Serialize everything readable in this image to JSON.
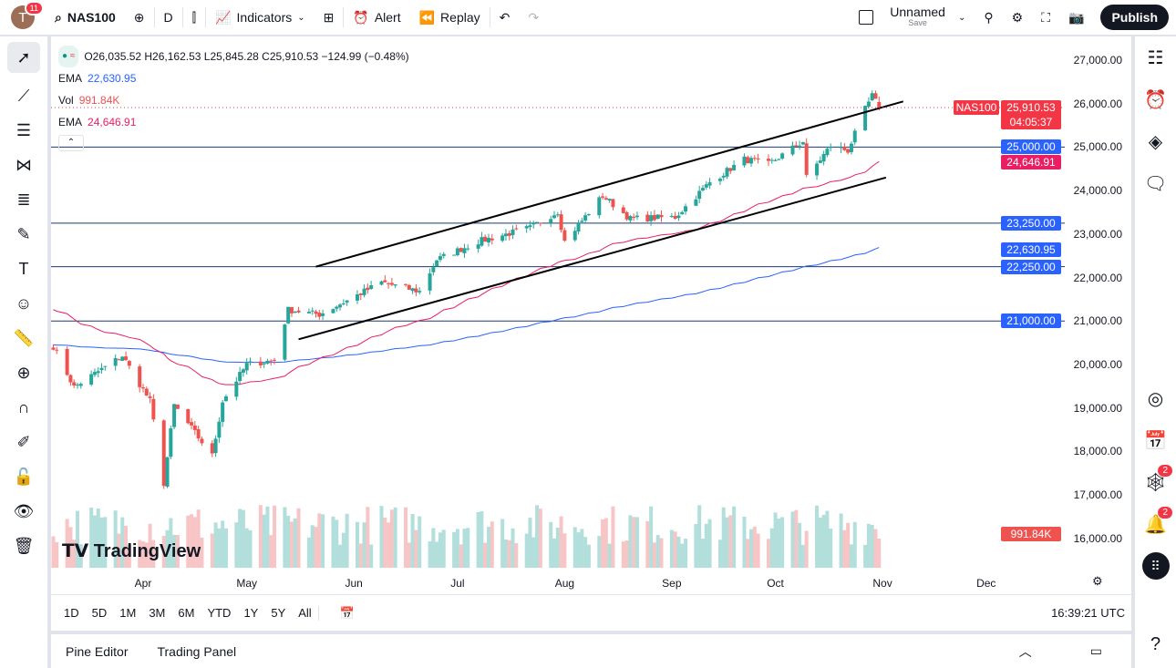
{
  "toolbar": {
    "avatar_letter": "T",
    "notifications": "11",
    "symbol": "NAS100",
    "interval": "D",
    "indicators": "Indicators",
    "alert": "Alert",
    "replay": "Replay",
    "layout_name": "Unnamed",
    "layout_save": "Save",
    "publish": "Publish"
  },
  "legend": {
    "ohlc": "O26,035.52 H26,162.53 L25,845.28 C25,910.53 −124.99 (−0.48%)",
    "ema1_label": "EMA",
    "ema1_value": "22,630.95",
    "vol_label": "Vol",
    "vol_value": "991.84K",
    "ema2_label": "EMA",
    "ema2_value": "24,646.91"
  },
  "price_axis": {
    "ticks": [
      "27,000.00",
      "26,000.00",
      "25,000.00",
      "24,000.00",
      "23,000.00",
      "22,000.00",
      "21,000.00",
      "20,000.00",
      "19,000.00",
      "18,000.00",
      "17,000.00",
      "16,000.00"
    ],
    "symbol_tag": "NAS100",
    "last_price": "25,910.53",
    "countdown": "04:05:37",
    "ema2_tag": "24,646.91",
    "ema1_tag": "22,630.95",
    "vol_tag": "991.84K",
    "levels": [
      "25,000.00",
      "23,250.00",
      "22,250.00",
      "21,000.00"
    ]
  },
  "time_axis": [
    "Apr",
    "May",
    "Jun",
    "Jul",
    "Aug",
    "Sep",
    "Oct",
    "Nov",
    "Dec"
  ],
  "range_bar": {
    "buttons": [
      "1D",
      "5D",
      "1M",
      "3M",
      "6M",
      "YTD",
      "1Y",
      "5Y",
      "All"
    ],
    "clock": "16:39:21 UTC"
  },
  "bottom_panel": {
    "pine": "Pine Editor",
    "trading": "Trading Panel"
  },
  "branding": "TradingView",
  "right_sidebar": {
    "badge1": "2",
    "badge2": "2"
  },
  "colors": {
    "up": "#26a69a",
    "down": "#ef5350",
    "ema_fast": "#e91e63",
    "ema_slow": "#2962ff",
    "level": "#2962ff",
    "accent": "#f23645"
  },
  "chart_data": {
    "type": "candlestick",
    "symbol": "NAS100",
    "ylim": [
      16000,
      27000
    ],
    "close_path": [
      [
        "2025-03-06",
        20420
      ],
      [
        "2025-03-12",
        19480
      ],
      [
        "2025-03-26",
        20200
      ],
      [
        "2025-04-03",
        19160
      ],
      [
        "2025-04-07",
        17270
      ],
      [
        "2025-04-10",
        19060
      ],
      [
        "2025-04-21",
        17900
      ],
      [
        "2025-04-24",
        19160
      ],
      [
        "2025-05-01",
        20000
      ],
      [
        "2025-05-09",
        20100
      ],
      [
        "2025-05-13",
        21260
      ],
      [
        "2025-05-22",
        21150
      ],
      [
        "2025-05-30",
        21470
      ],
      [
        "2025-06-09",
        21890
      ],
      [
        "2025-06-20",
        21680
      ],
      [
        "2025-06-25",
        22410
      ],
      [
        "2025-07-07",
        22830
      ],
      [
        "2025-07-22",
        23140
      ],
      [
        "2025-07-30",
        23520
      ],
      [
        "2025-08-01",
        22830
      ],
      [
        "2025-08-12",
        23880
      ],
      [
        "2025-08-20",
        23350
      ],
      [
        "2025-09-02",
        23390
      ],
      [
        "2025-09-12",
        24190
      ],
      [
        "2025-09-22",
        24720
      ],
      [
        "2025-09-29",
        24610
      ],
      [
        "2025-10-09",
        25130
      ],
      [
        "2025-10-10",
        24300
      ],
      [
        "2025-10-17",
        25030
      ],
      [
        "2025-10-22",
        24920
      ],
      [
        "2025-10-27",
        25870
      ],
      [
        "2025-10-29",
        26180
      ],
      [
        "2025-10-31",
        25910
      ]
    ],
    "horizontal_levels": [
      25000,
      23250,
      22250,
      21000
    ],
    "channel": {
      "upper": [
        [
          "2025-05-21",
          22250
        ],
        [
          "2025-11-07",
          26050
        ]
      ],
      "lower": [
        [
          "2025-05-16",
          20580
        ],
        [
          "2025-11-02",
          24300
        ]
      ]
    }
  }
}
